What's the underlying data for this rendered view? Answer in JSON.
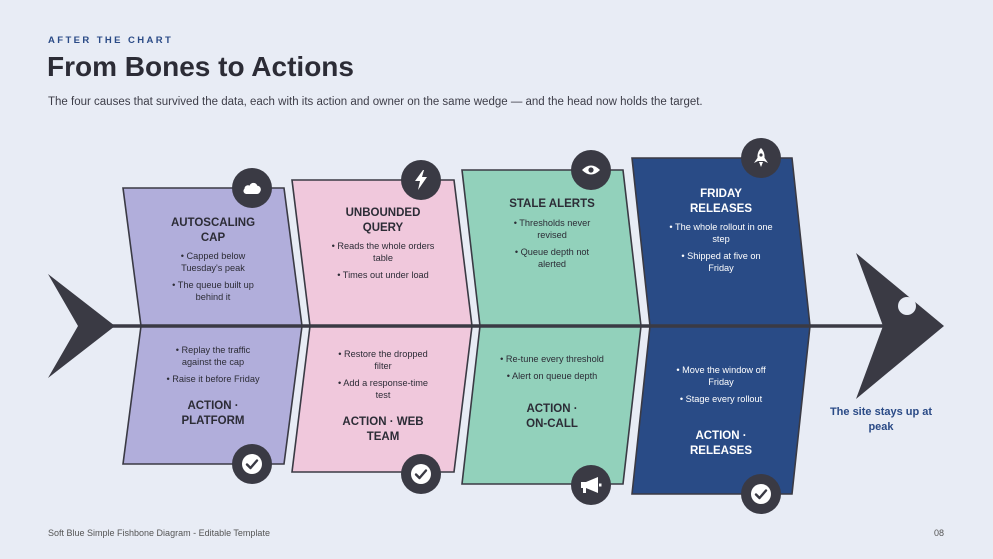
{
  "header": {
    "eyebrow": "AFTER THE CHART",
    "title": "From Bones to Actions",
    "subtitle": "The four causes that survived the data, each with its action and owner on the same wedge — and the head now holds the target."
  },
  "causes": [
    {
      "title_lines": [
        "AUTOSCALING",
        "CAP"
      ],
      "bullets": [
        "• Capped below Tuesday's peak",
        "• The queue built up behind it"
      ],
      "icon": "cloud-icon",
      "color": "#b1aedb"
    },
    {
      "title_lines": [
        "UNBOUNDED",
        "QUERY"
      ],
      "bullets": [
        "• Reads the whole orders table",
        "• Times out under load"
      ],
      "icon": "lightning-icon",
      "color": "#f0c8dc"
    },
    {
      "title_lines": [
        "STALE ALERTS"
      ],
      "bullets": [
        "• Thresholds never revised",
        "• Queue depth not alerted"
      ],
      "icon": "eye-icon",
      "color": "#92d1bb"
    },
    {
      "title_lines": [
        "FRIDAY",
        "RELEASES"
      ],
      "bullets": [
        "• The whole rollout in one step",
        "• Shipped at five on Friday"
      ],
      "icon": "rocket-icon",
      "color": "#294b86"
    }
  ],
  "actions": [
    {
      "bullets": [
        "• Replay the traffic against the cap",
        "• Raise it before Friday"
      ],
      "owner_lines": [
        "ACTION ·",
        "PLATFORM"
      ],
      "icon": "check-icon"
    },
    {
      "bullets": [
        "• Restore the dropped filter",
        "• Add a response-time test"
      ],
      "owner_lines": [
        "ACTION · WEB",
        "TEAM"
      ],
      "icon": "check-icon"
    },
    {
      "bullets": [
        "• Re-tune every threshold",
        "• Alert on queue depth"
      ],
      "owner_lines": [
        "ACTION ·",
        "ON-CALL"
      ],
      "icon": "megaphone-icon"
    },
    {
      "bullets": [
        "• Move the window off Friday",
        "• Stage every rollout"
      ],
      "owner_lines": [
        "ACTION ·",
        "RELEASES"
      ],
      "icon": "check-icon"
    }
  ],
  "target": "The site stays up at peak",
  "footer": {
    "left": "Soft Blue Simple Fishbone Diagram - Editable Template",
    "right": "08"
  },
  "colors": {
    "background": "#e8ecf5",
    "spine": "#3a3a44",
    "accent": "#2a4a86"
  }
}
